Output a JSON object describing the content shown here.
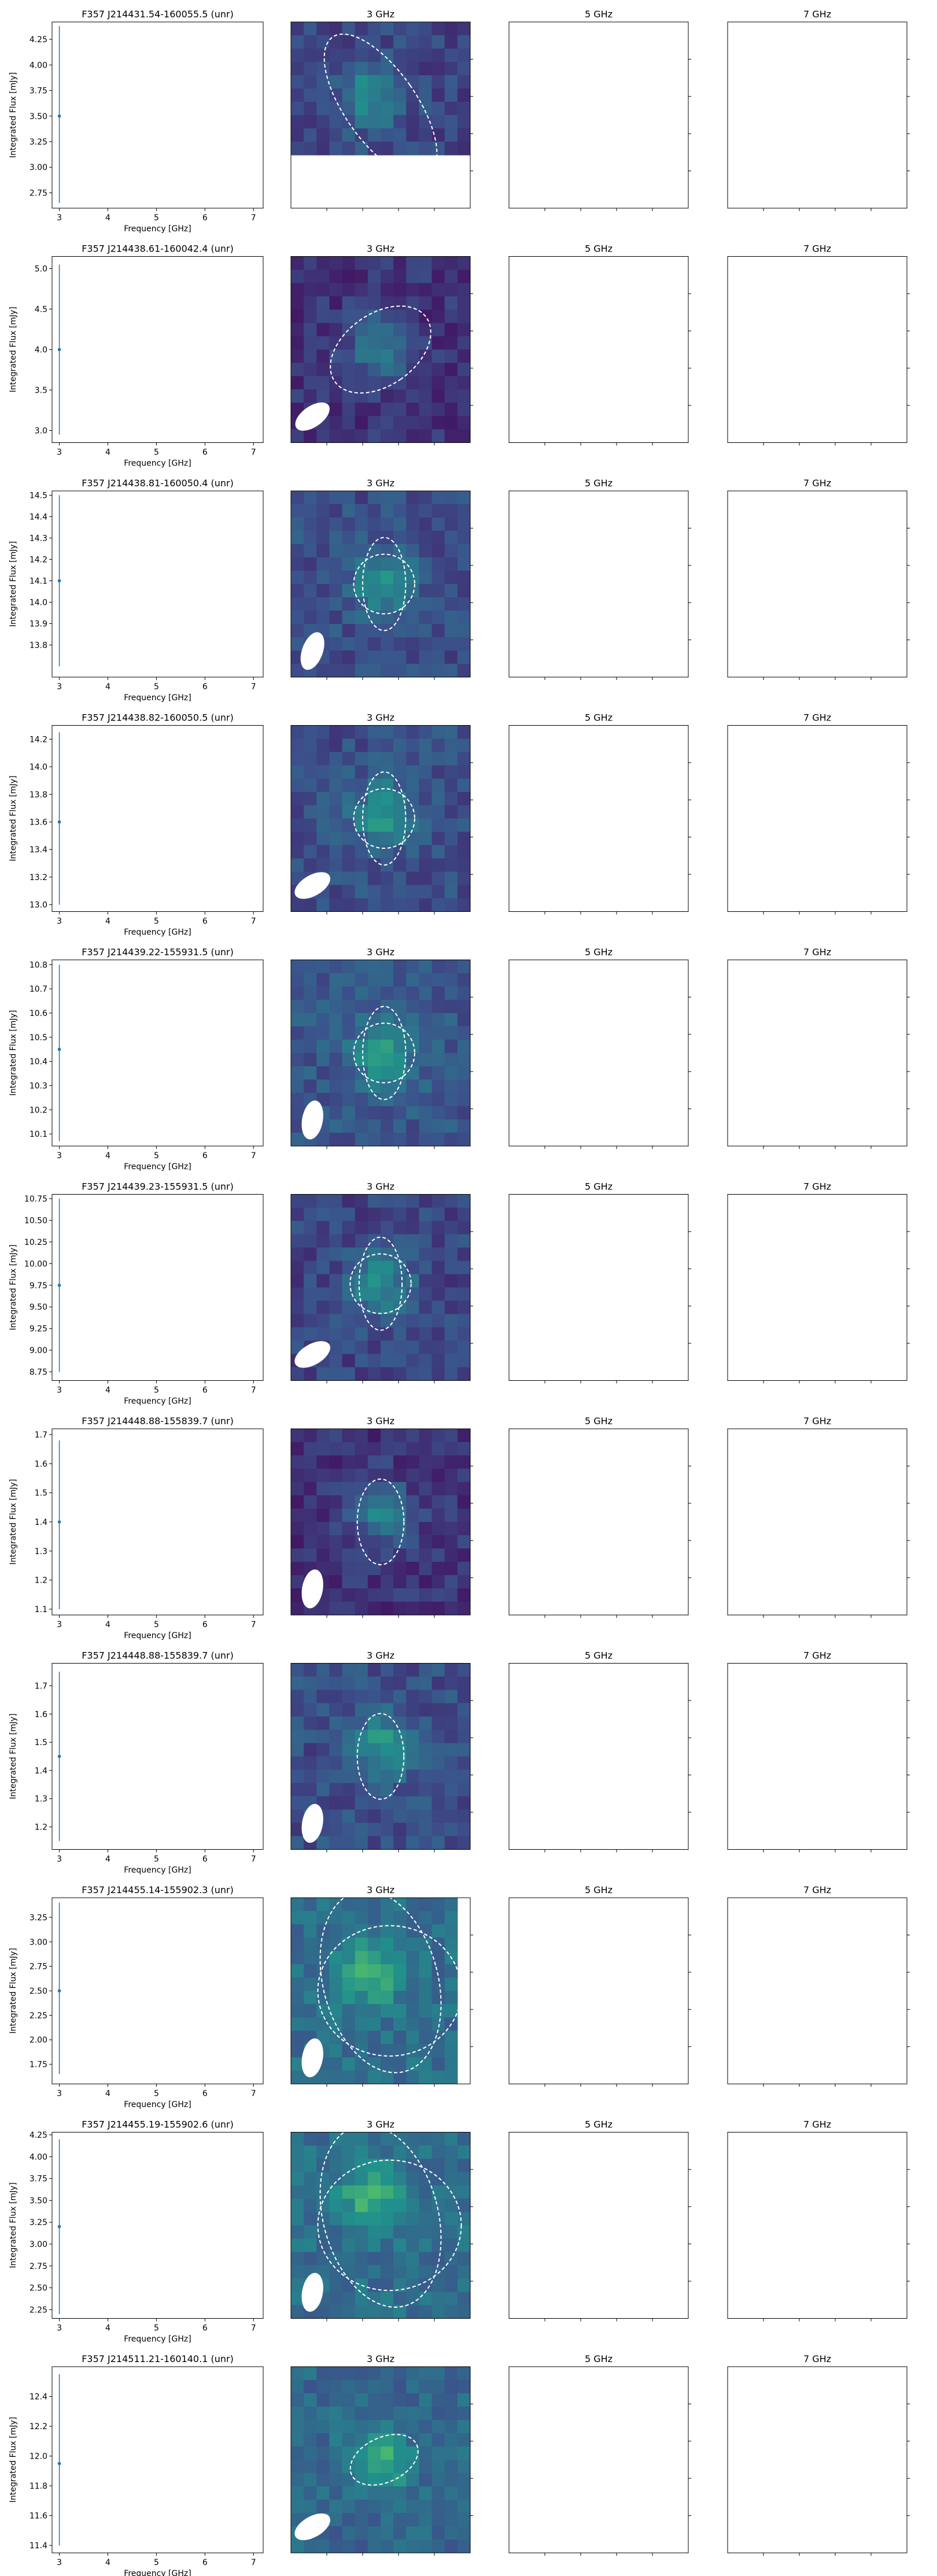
{
  "figure": {
    "xlabel": "Frequency [GHz]",
    "ylabel": "Integrated Flux [mJy]",
    "image_titles": [
      "3 GHz",
      "5 GHz",
      "7 GHz"
    ],
    "x_ticks": [
      3,
      4,
      5,
      6,
      7
    ],
    "x_range": [
      2.85,
      7.2
    ],
    "marker_color": "#1f77b4",
    "contour_color": "#ffffff",
    "colormap": "viridis"
  },
  "chart_data": [
    {
      "type": "scatter",
      "title": "F357 J214431.54-160055.5 (unr)",
      "x": [
        3.0
      ],
      "y": [
        3.5
      ],
      "yerr_low": [
        2.65
      ],
      "yerr_high": [
        4.38
      ],
      "ylim": [
        2.6,
        4.42
      ],
      "y_ticks": [
        "2.75",
        "3.00",
        "3.25",
        "3.50",
        "3.75",
        "4.00",
        "4.25"
      ],
      "map": {
        "level": 0.35,
        "bright_center": [
          0.45,
          0.4
        ],
        "cutoff_bottom": 0.3,
        "beam": false,
        "ellipses": [
          {
            "cx": 0.5,
            "cy": 0.45,
            "rx": 0.2,
            "ry": 0.45,
            "rot": -35
          }
        ]
      }
    },
    {
      "type": "scatter",
      "title": "F357 J214438.61-160042.4 (unr)",
      "x": [
        3.0
      ],
      "y": [
        4.0
      ],
      "yerr_low": [
        2.95
      ],
      "yerr_high": [
        5.05
      ],
      "ylim": [
        2.85,
        5.15
      ],
      "y_ticks": [
        "3.0",
        "3.5",
        "4.0",
        "4.5",
        "5.0"
      ],
      "map": {
        "level": 0.25,
        "bright_center": [
          0.5,
          0.5
        ],
        "beam": true,
        "beam_rot": 55,
        "ellipses": [
          {
            "cx": 0.5,
            "cy": 0.5,
            "rx": 0.2,
            "ry": 0.3,
            "rot": 55
          }
        ]
      }
    },
    {
      "type": "scatter",
      "title": "F357 J214438.81-160050.4 (unr)",
      "x": [
        3.0
      ],
      "y": [
        14.1
      ],
      "yerr_low": [
        13.7
      ],
      "yerr_high": [
        14.5
      ],
      "ylim": [
        13.65,
        14.52
      ],
      "y_ticks": [
        "13.8",
        "13.9",
        "14.0",
        "14.1",
        "14.2",
        "14.3",
        "14.4",
        "14.5"
      ],
      "map": {
        "level": 0.4,
        "bright_center": [
          0.52,
          0.5
        ],
        "beam": true,
        "beam_rot": 20,
        "ellipses": [
          {
            "cx": 0.52,
            "cy": 0.5,
            "rx": 0.12,
            "ry": 0.25,
            "rot": 0
          },
          {
            "cx": 0.52,
            "cy": 0.5,
            "rx": 0.17,
            "ry": 0.16,
            "rot": 0
          }
        ]
      }
    },
    {
      "type": "scatter",
      "title": "F357 J214438.82-160050.5 (unr)",
      "x": [
        3.0
      ],
      "y": [
        13.6
      ],
      "yerr_low": [
        13.0
      ],
      "yerr_high": [
        14.25
      ],
      "ylim": [
        12.95,
        14.3
      ],
      "y_ticks": [
        "13.0",
        "13.2",
        "13.4",
        "13.6",
        "13.8",
        "14.0",
        "14.2"
      ],
      "map": {
        "level": 0.4,
        "bright_center": [
          0.52,
          0.48
        ],
        "beam": true,
        "beam_rot": 60,
        "ellipses": [
          {
            "cx": 0.52,
            "cy": 0.5,
            "rx": 0.12,
            "ry": 0.25,
            "rot": 0
          },
          {
            "cx": 0.52,
            "cy": 0.5,
            "rx": 0.17,
            "ry": 0.16,
            "rot": 0
          }
        ]
      }
    },
    {
      "type": "scatter",
      "title": "F357 J214439.22-155931.5 (unr)",
      "x": [
        3.0
      ],
      "y": [
        10.45
      ],
      "yerr_low": [
        10.07
      ],
      "yerr_high": [
        10.8
      ],
      "ylim": [
        10.05,
        10.82
      ],
      "y_ticks": [
        "10.1",
        "10.2",
        "10.3",
        "10.4",
        "10.5",
        "10.6",
        "10.7",
        "10.8"
      ],
      "map": {
        "level": 0.45,
        "bright_center": [
          0.52,
          0.5
        ],
        "beam": true,
        "beam_rot": 10,
        "ellipses": [
          {
            "cx": 0.52,
            "cy": 0.5,
            "rx": 0.12,
            "ry": 0.25,
            "rot": 0
          },
          {
            "cx": 0.52,
            "cy": 0.5,
            "rx": 0.17,
            "ry": 0.16,
            "rot": 0
          }
        ]
      }
    },
    {
      "type": "scatter",
      "title": "F357 J214439.23-155931.5 (unr)",
      "x": [
        3.0
      ],
      "y": [
        9.75
      ],
      "yerr_low": [
        8.75
      ],
      "yerr_high": [
        10.75
      ],
      "ylim": [
        8.65,
        10.8
      ],
      "y_ticks": [
        "8.75",
        "9.00",
        "9.25",
        "9.50",
        "9.75",
        "10.00",
        "10.25",
        "10.50",
        "10.75"
      ],
      "map": {
        "level": 0.35,
        "bright_center": [
          0.5,
          0.48
        ],
        "beam": true,
        "beam_rot": 60,
        "ellipses": [
          {
            "cx": 0.5,
            "cy": 0.48,
            "rx": 0.12,
            "ry": 0.25,
            "rot": 0
          },
          {
            "cx": 0.5,
            "cy": 0.48,
            "rx": 0.17,
            "ry": 0.16,
            "rot": 0
          }
        ]
      }
    },
    {
      "type": "scatter",
      "title": "F357 J214448.88-155839.7 (unr)",
      "x": [
        3.0
      ],
      "y": [
        1.4
      ],
      "yerr_low": [
        1.1
      ],
      "yerr_high": [
        1.68
      ],
      "ylim": [
        1.08,
        1.72
      ],
      "y_ticks": [
        "1.1",
        "1.2",
        "1.3",
        "1.4",
        "1.5",
        "1.6",
        "1.7"
      ],
      "map": {
        "level": 0.25,
        "bright_center": [
          0.5,
          0.45
        ],
        "beam": true,
        "beam_rot": 10,
        "ellipses": [
          {
            "cx": 0.5,
            "cy": 0.5,
            "rx": 0.13,
            "ry": 0.23,
            "rot": 0
          }
        ]
      }
    },
    {
      "type": "scatter",
      "title": "F357 J214448.88-155839.7 (unr)",
      "x": [
        3.0
      ],
      "y": [
        1.45
      ],
      "yerr_low": [
        1.15
      ],
      "yerr_high": [
        1.75
      ],
      "ylim": [
        1.12,
        1.78
      ],
      "y_ticks": [
        "1.2",
        "1.3",
        "1.4",
        "1.5",
        "1.6",
        "1.7"
      ],
      "map": {
        "level": 0.4,
        "bright_center": [
          0.5,
          0.45
        ],
        "beam": true,
        "beam_rot": 10,
        "ellipses": [
          {
            "cx": 0.5,
            "cy": 0.5,
            "rx": 0.13,
            "ry": 0.23,
            "rot": 0
          }
        ]
      }
    },
    {
      "type": "scatter",
      "title": "F357 J214455.14-155902.3 (unr)",
      "x": [
        3.0
      ],
      "y": [
        2.5
      ],
      "yerr_low": [
        1.65
      ],
      "yerr_high": [
        3.4
      ],
      "ylim": [
        1.55,
        3.45
      ],
      "y_ticks": [
        "1.75",
        "2.00",
        "2.25",
        "2.50",
        "2.75",
        "3.00",
        "3.25"
      ],
      "map": {
        "level": 0.6,
        "bright_center": [
          0.45,
          0.4
        ],
        "cutoff_right": 0.1,
        "beam": true,
        "beam_rot": 10,
        "ellipses": [
          {
            "cx": 0.5,
            "cy": 0.45,
            "rx": 0.32,
            "ry": 0.5,
            "rot": -15
          },
          {
            "cx": 0.55,
            "cy": 0.5,
            "rx": 0.4,
            "ry": 0.35,
            "rot": 0
          }
        ]
      }
    },
    {
      "type": "scatter",
      "title": "F357 J214455.19-155902.6 (unr)",
      "x": [
        3.0
      ],
      "y": [
        3.2
      ],
      "yerr_low": [
        2.2
      ],
      "yerr_high": [
        4.2
      ],
      "ylim": [
        2.15,
        4.28
      ],
      "y_ticks": [
        "2.25",
        "2.50",
        "2.75",
        "3.00",
        "3.25",
        "3.50",
        "3.75",
        "4.00",
        "4.25"
      ],
      "map": {
        "level": 0.6,
        "bright_center": [
          0.45,
          0.35
        ],
        "beam": true,
        "beam_rot": 10,
        "ellipses": [
          {
            "cx": 0.5,
            "cy": 0.45,
            "rx": 0.32,
            "ry": 0.5,
            "rot": -15
          },
          {
            "cx": 0.55,
            "cy": 0.5,
            "rx": 0.4,
            "ry": 0.35,
            "rot": 0
          }
        ]
      }
    },
    {
      "type": "scatter",
      "title": "F357 J214511.21-160140.1 (unr)",
      "x": [
        3.0
      ],
      "y": [
        11.95
      ],
      "yerr_low": [
        11.4
      ],
      "yerr_high": [
        12.55
      ],
      "ylim": [
        11.35,
        12.6
      ],
      "y_ticks": [
        "11.4",
        "11.6",
        "11.8",
        "12.0",
        "12.2",
        "12.4"
      ],
      "map": {
        "level": 0.55,
        "bright_center": [
          0.5,
          0.5
        ],
        "beam": true,
        "beam_rot": 60,
        "ellipses": [
          {
            "cx": 0.52,
            "cy": 0.5,
            "rx": 0.2,
            "ry": 0.12,
            "rot": -25
          }
        ]
      }
    }
  ]
}
